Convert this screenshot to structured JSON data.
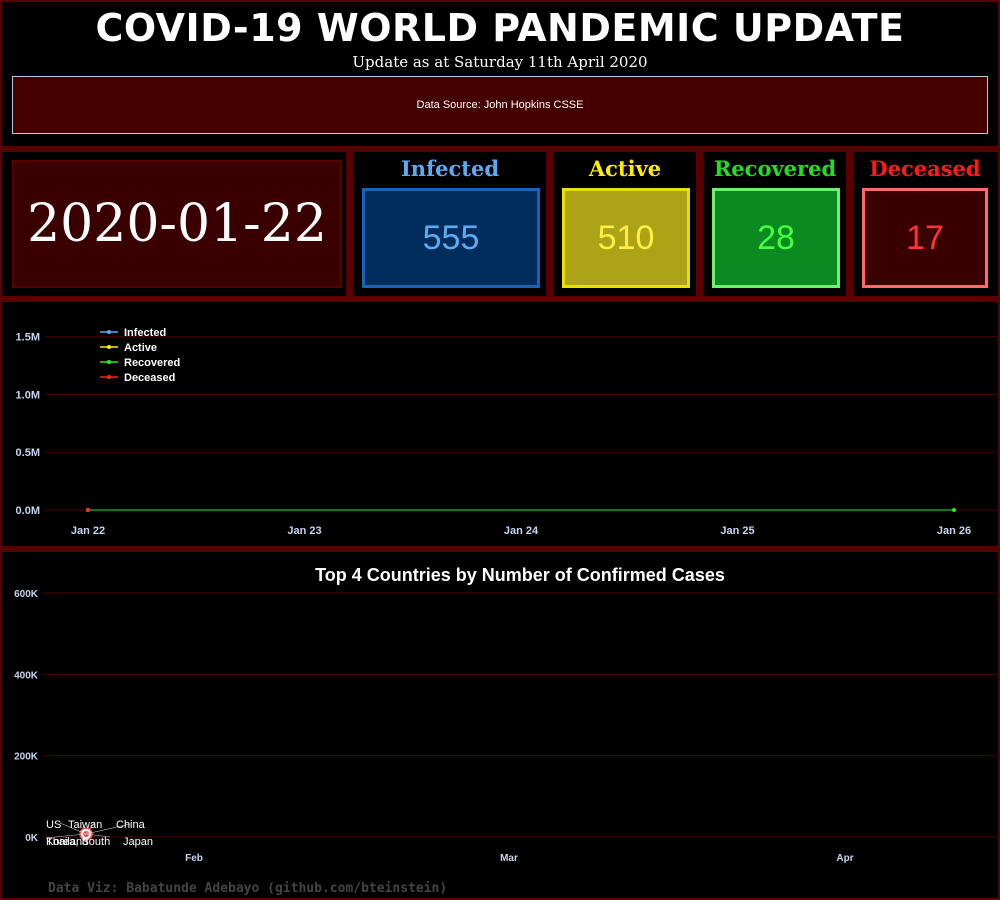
{
  "header": {
    "title": "COVID-19 WORLD PANDEMIC UPDATE",
    "subtitle": "Update as at Saturday 11th April 2020",
    "source": "Data Source: John Hopkins CSSE"
  },
  "date_display": "2020-01-22",
  "stats": [
    {
      "label": "Infected",
      "value": "555",
      "title_color": "#5ea9f0",
      "box_bg": "#002d5c",
      "box_border": "#1a63b8",
      "value_color": "#5ea9f0"
    },
    {
      "label": "Active",
      "value": "510",
      "title_color": "#ffee00",
      "box_bg": "#ada316",
      "box_border": "#e8e000",
      "value_color": "#ffee44"
    },
    {
      "label": "Recovered",
      "value": "28",
      "title_color": "#22dd22",
      "box_bg": "#0b8a20",
      "box_border": "#6ef06e",
      "value_color": "#44ff44"
    },
    {
      "label": "Deceased",
      "value": "17",
      "title_color": "#ff1a1a",
      "box_bg": "#3a0000",
      "box_border": "#ff6b6b",
      "value_color": "#ff3333"
    }
  ],
  "colors": {
    "background": "#000000",
    "panel_border": "#5a0000",
    "gridline": "#4a0000",
    "tick_label": "#c6d4ee",
    "infected": "#5ea9f0",
    "active": "#ffee00",
    "recovered": "#22ee22",
    "deceased": "#ff2222"
  },
  "footer": "Data Viz: Babatunde Adebayo (github.com/bteinstein)",
  "chart_data": [
    {
      "type": "line",
      "title": "",
      "xlabel": "",
      "ylabel": "",
      "x": [
        "Jan 22",
        "Jan 23",
        "Jan 24",
        "Jan 25",
        "Jan 26"
      ],
      "x_ticks": [
        "Jan 22",
        "Jan 23",
        "Jan 24",
        "Jan 25",
        "Jan 26"
      ],
      "y_ticks": [
        0,
        500000,
        1000000,
        1500000
      ],
      "y_tick_labels": [
        "0.0M",
        "0.5M",
        "1.0M",
        "1.5M"
      ],
      "ylim": [
        0,
        1800000
      ],
      "grid": true,
      "legend_position": "top-left",
      "series": [
        {
          "name": "Infected",
          "values": [
            555,
            null,
            null,
            null,
            null
          ]
        },
        {
          "name": "Active",
          "values": [
            510,
            null,
            null,
            null,
            null
          ]
        },
        {
          "name": "Recovered",
          "values": [
            28,
            null,
            null,
            null,
            28
          ]
        },
        {
          "name": "Deceased",
          "values": [
            17,
            null,
            null,
            null,
            null
          ]
        }
      ]
    },
    {
      "type": "line",
      "title": "Top 4 Countries by Number of Confirmed Cases",
      "xlabel": "",
      "ylabel": "",
      "x_ticks": [
        "Feb",
        "Mar",
        "Apr"
      ],
      "y_ticks": [
        0,
        200000,
        400000,
        600000
      ],
      "y_tick_labels": [
        "0K",
        "200K",
        "400K",
        "600K"
      ],
      "ylim": [
        0,
        640000
      ],
      "grid": true,
      "point_date": "Jan 22",
      "point_value": 0,
      "annotations": [
        "US",
        "Taiwan",
        "China",
        "Korea, South",
        "Japan",
        "Thailand"
      ]
    }
  ]
}
